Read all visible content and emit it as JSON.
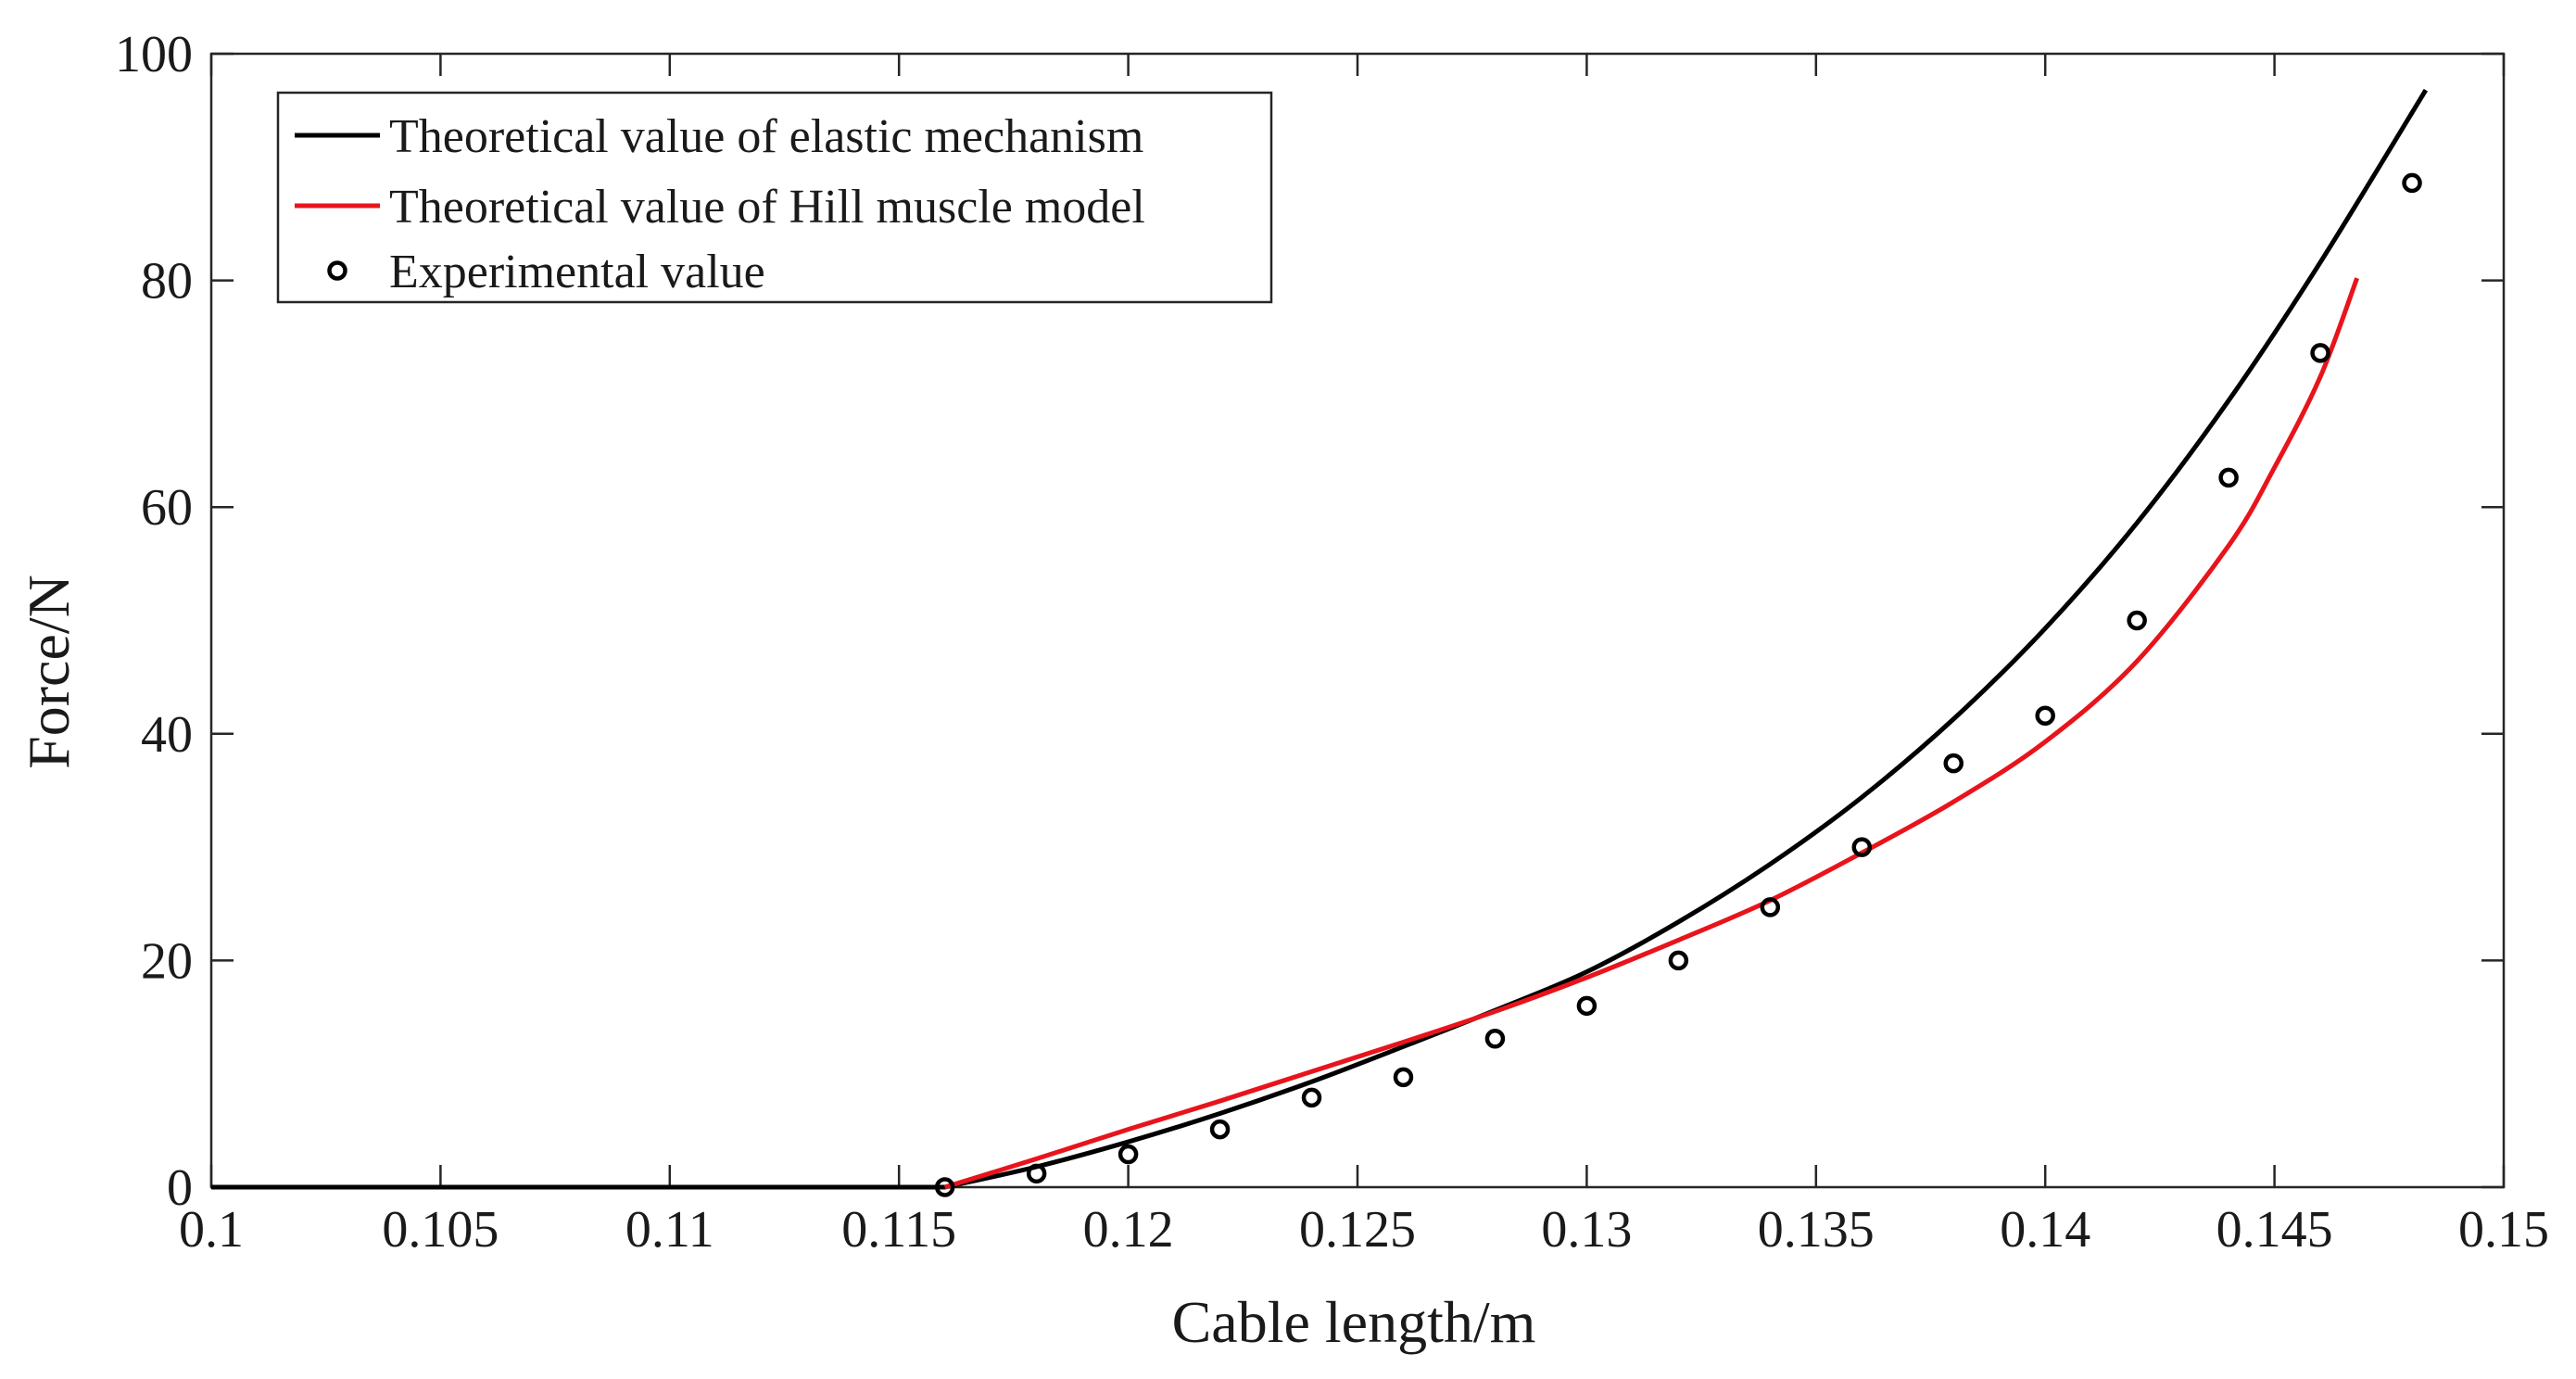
{
  "chart_data": {
    "type": "line",
    "title": "",
    "xlabel": "Cable length/m",
    "ylabel": "Force/N",
    "xlim": [
      0.1,
      0.15
    ],
    "ylim": [
      0,
      100
    ],
    "x_ticks": [
      0.1,
      0.105,
      0.11,
      0.115,
      0.12,
      0.125,
      0.13,
      0.135,
      0.14,
      0.145,
      0.15
    ],
    "x_tick_labels": [
      "0.1",
      "0.105",
      "0.11",
      "0.115",
      "0.12",
      "0.125",
      "0.13",
      "0.135",
      "0.14",
      "0.145",
      "0.15"
    ],
    "y_ticks": [
      0,
      20,
      40,
      60,
      80,
      100
    ],
    "y_tick_labels": [
      "0",
      "20",
      "40",
      "60",
      "80",
      "100"
    ],
    "grid": false,
    "legend_position": "top-left",
    "series": [
      {
        "name": "Theoretical value of elastic mechanism",
        "kind": "line",
        "color": "#000000",
        "x": [
          0.1,
          0.105,
          0.11,
          0.116,
          0.118,
          0.12,
          0.122,
          0.124,
          0.126,
          0.128,
          0.13,
          0.132,
          0.134,
          0.136,
          0.138,
          0.14,
          0.142,
          0.144,
          0.146,
          0.1483
        ],
        "y": [
          0,
          0,
          0,
          0,
          1.8,
          4.0,
          6.5,
          9.3,
          12.4,
          15.6,
          19.0,
          23.4,
          28.5,
          34.4,
          41.3,
          49.3,
          58.6,
          69.4,
          81.6,
          96.8
        ]
      },
      {
        "name": "Theoretical value of Hill muscle model",
        "kind": "line",
        "color": "#e8141c",
        "x": [
          0.116,
          0.118,
          0.12,
          0.122,
          0.124,
          0.126,
          0.128,
          0.13,
          0.132,
          0.134,
          0.136,
          0.138,
          0.14,
          0.142,
          0.144,
          0.145,
          0.146,
          0.1468
        ],
        "y": [
          0,
          2.5,
          5.1,
          7.6,
          10.2,
          12.8,
          15.5,
          18.5,
          21.8,
          25.3,
          29.5,
          34.0,
          39.3,
          46.4,
          56.6,
          63.5,
          71.5,
          80.2
        ]
      },
      {
        "name": "Experimental value",
        "kind": "scatter",
        "color": "#000000",
        "x": [
          0.116,
          0.118,
          0.12,
          0.122,
          0.124,
          0.126,
          0.128,
          0.13,
          0.132,
          0.134,
          0.136,
          0.138,
          0.14,
          0.142,
          0.144,
          0.146,
          0.148
        ],
        "y": [
          0,
          1.2,
          2.9,
          5.1,
          7.9,
          9.7,
          13.1,
          16.0,
          20.0,
          24.7,
          30.0,
          37.4,
          41.6,
          50.0,
          62.6,
          73.6,
          88.6
        ]
      }
    ]
  }
}
